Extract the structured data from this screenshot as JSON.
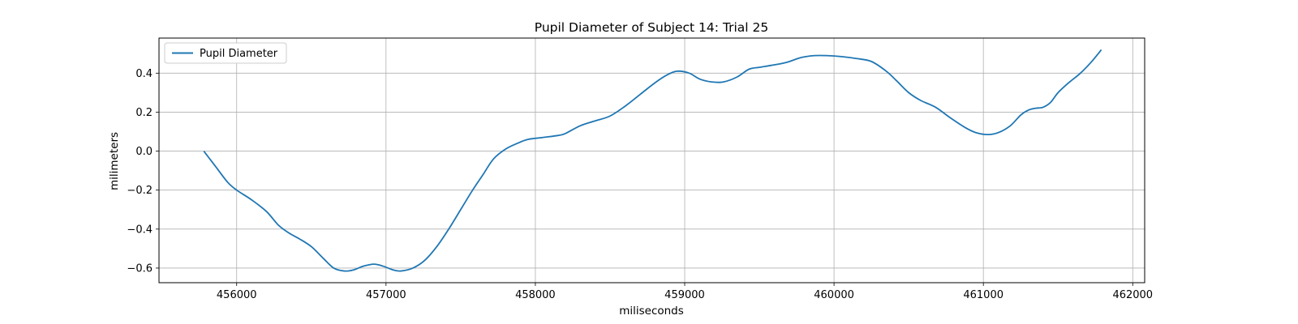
{
  "chart_data": {
    "type": "line",
    "title": "Pupil Diameter of Subject 14: Trial 25",
    "xlabel": "miliseconds",
    "ylabel": "milimeters",
    "xlim": [
      455480,
      462080
    ],
    "ylim": [
      -0.675,
      0.58
    ],
    "xticks": [
      456000,
      457000,
      458000,
      459000,
      460000,
      461000,
      462000
    ],
    "yticks": [
      -0.6,
      -0.4,
      -0.2,
      0.0,
      0.2,
      0.4
    ],
    "ytick_labels": [
      "−0.6",
      "−0.4",
      "−0.2",
      "0.0",
      "0.2",
      "0.4"
    ],
    "grid": true,
    "legend_position": "top-left",
    "series": [
      {
        "name": "Pupil Diameter",
        "color": "#1f77b4",
        "x": [
          455780,
          455860,
          455940,
          456000,
          456100,
          456200,
          456280,
          456350,
          456420,
          456500,
          456580,
          456650,
          456720,
          456780,
          456850,
          456920,
          456980,
          457050,
          457100,
          457180,
          457260,
          457340,
          457420,
          457500,
          457580,
          457650,
          457720,
          457800,
          457880,
          457950,
          458050,
          458150,
          458200,
          458300,
          458400,
          458500,
          458600,
          458700,
          458800,
          458880,
          458950,
          459030,
          459100,
          459180,
          459260,
          459350,
          459430,
          459500,
          459580,
          459680,
          459780,
          459870,
          459950,
          460050,
          460150,
          460250,
          460350,
          460420,
          460500,
          460580,
          460680,
          460780,
          460880,
          460950,
          461030,
          461100,
          461180,
          461250,
          461300,
          461350,
          461400,
          461450,
          461500,
          461570,
          461650,
          461720,
          461790
        ],
        "y": [
          0.0,
          -0.08,
          -0.16,
          -0.2,
          -0.25,
          -0.31,
          -0.38,
          -0.42,
          -0.45,
          -0.49,
          -0.55,
          -0.6,
          -0.615,
          -0.61,
          -0.59,
          -0.58,
          -0.59,
          -0.61,
          -0.615,
          -0.6,
          -0.56,
          -0.49,
          -0.4,
          -0.3,
          -0.2,
          -0.12,
          -0.04,
          0.01,
          0.04,
          0.06,
          0.07,
          0.08,
          0.09,
          0.13,
          0.155,
          0.18,
          0.23,
          0.29,
          0.35,
          0.39,
          0.41,
          0.4,
          0.37,
          0.355,
          0.355,
          0.38,
          0.42,
          0.43,
          0.44,
          0.455,
          0.48,
          0.49,
          0.49,
          0.485,
          0.475,
          0.46,
          0.41,
          0.36,
          0.3,
          0.26,
          0.225,
          0.17,
          0.12,
          0.095,
          0.085,
          0.095,
          0.13,
          0.185,
          0.21,
          0.22,
          0.225,
          0.25,
          0.3,
          0.35,
          0.4,
          0.455,
          0.52
        ]
      }
    ]
  }
}
